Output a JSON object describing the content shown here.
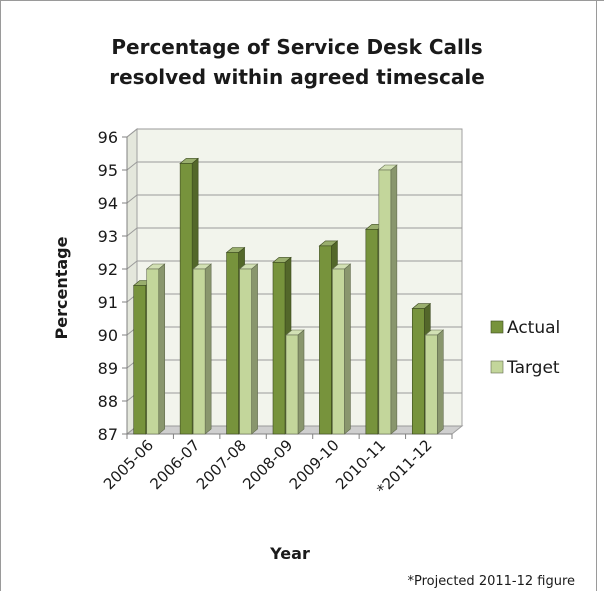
{
  "chart_data": {
    "type": "bar",
    "title_lines": [
      "Percentage of Service Desk Calls",
      "resolved within agreed timescale"
    ],
    "xlabel": "Year",
    "ylabel": "Percentage",
    "ylim": [
      87,
      96
    ],
    "yticks": [
      87,
      88,
      89,
      90,
      91,
      92,
      93,
      94,
      95,
      96
    ],
    "grid": true,
    "legend_position": "right",
    "categories": [
      "2005-06",
      "2006-07",
      "2007-08",
      "2008-09",
      "2009-10",
      "2010-11",
      "*2011-12"
    ],
    "series": [
      {
        "name": "Actual",
        "values": [
          91.5,
          95.2,
          92.5,
          92.2,
          92.7,
          93.2,
          90.8
        ],
        "color": "#77933c"
      },
      {
        "name": "Target",
        "values": [
          92,
          92,
          92,
          90,
          92,
          95,
          90
        ],
        "color": "#c3d69b"
      }
    ],
    "footnote": "*Projected 2011-12  figure"
  }
}
